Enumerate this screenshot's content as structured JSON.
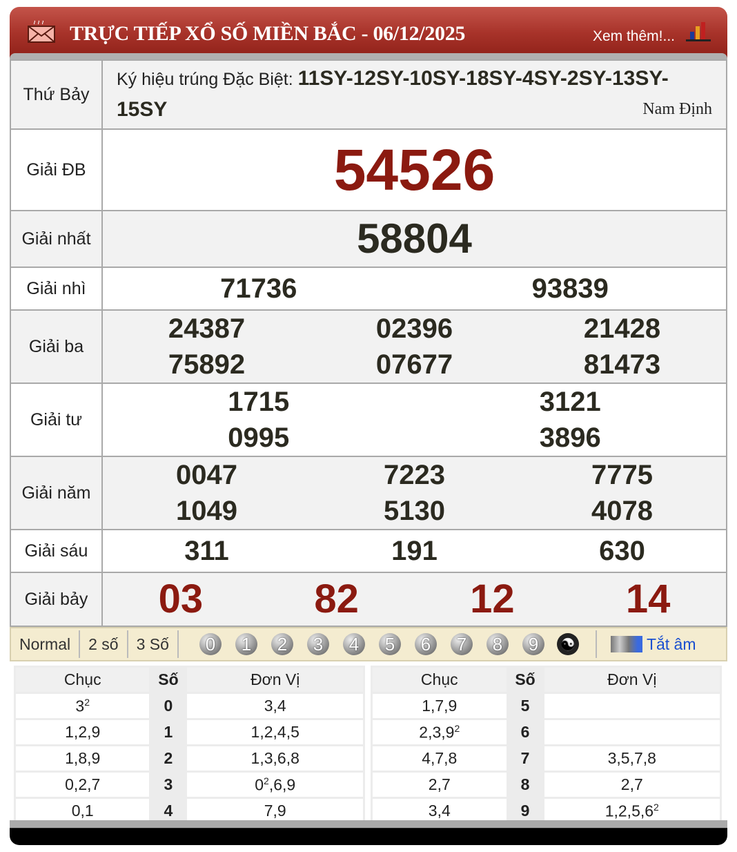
{
  "header": {
    "title": "TRỰC TIẾP XỔ SỐ MIỀN BẮC - 06/12/2025",
    "more_link": "Xem thêm!...",
    "colors": {
      "header": "#a8332a",
      "special": "#8b1a10"
    }
  },
  "info": {
    "day": "Thứ Bảy",
    "code_label": "Ký hiệu trúng Đặc Biệt: ",
    "codes": "11SY-12SY-10SY-18SY-4SY-2SY-13SY-15SY",
    "province": "Nam Định"
  },
  "prizes": [
    {
      "label": "Giải ĐB",
      "cols": 1,
      "numbers": [
        "54526"
      ]
    },
    {
      "label": "Giải nhất",
      "cols": 1,
      "numbers": [
        "58804"
      ]
    },
    {
      "label": "Giải nhì",
      "cols": 2,
      "numbers": [
        "71736",
        "93839"
      ]
    },
    {
      "label": "Giải ba",
      "cols": 3,
      "numbers": [
        "24387",
        "02396",
        "21428",
        "75892",
        "07677",
        "81473"
      ]
    },
    {
      "label": "Giải tư",
      "cols": 2,
      "numbers": [
        "1715",
        "3121",
        "0995",
        "3896"
      ]
    },
    {
      "label": "Giải năm",
      "cols": 3,
      "numbers": [
        "0047",
        "7223",
        "7775",
        "1049",
        "5130",
        "4078"
      ]
    },
    {
      "label": "Giải sáu",
      "cols": 3,
      "numbers": [
        "311",
        "191",
        "630"
      ]
    },
    {
      "label": "Giải bảy",
      "cols": 4,
      "numbers": [
        "03",
        "82",
        "12",
        "14"
      ]
    }
  ],
  "toolbar": {
    "modes": [
      "Normal",
      "2 số",
      "3 Số"
    ],
    "digits": [
      "0",
      "1",
      "2",
      "3",
      "4",
      "5",
      "6",
      "7",
      "8",
      "9"
    ],
    "mute": "Tắt âm"
  },
  "loto": {
    "headers": [
      "Chục",
      "Số",
      "Đơn Vị"
    ],
    "rows": [
      {
        "chuc": [
          [
            "3",
            "2"
          ]
        ],
        "so": "0",
        "dv": [
          [
            "3,4",
            ""
          ]
        ]
      },
      {
        "chuc": [
          [
            "1,2,9",
            ""
          ]
        ],
        "so": "1",
        "dv": [
          [
            "1,2,4,5",
            ""
          ]
        ]
      },
      {
        "chuc": [
          [
            "1,8,9",
            ""
          ]
        ],
        "so": "2",
        "dv": [
          [
            "1,3,6,8",
            ""
          ]
        ]
      },
      {
        "chuc": [
          [
            "0,2,7",
            ""
          ]
        ],
        "so": "3",
        "dv": [
          [
            "0",
            "2"
          ],
          [
            ",6,9",
            ""
          ]
        ]
      },
      {
        "chuc": [
          [
            "0,1",
            ""
          ]
        ],
        "so": "4",
        "dv": [
          [
            "7,9",
            ""
          ]
        ]
      },
      {
        "chuc": [
          [
            "1,7,9",
            ""
          ]
        ],
        "so": "5",
        "dv": []
      },
      {
        "chuc": [
          [
            "2,3,9",
            "2"
          ]
        ],
        "so": "6",
        "dv": []
      },
      {
        "chuc": [
          [
            "4,7,8",
            ""
          ]
        ],
        "so": "7",
        "dv": [
          [
            "3,5,7,8",
            ""
          ]
        ]
      },
      {
        "chuc": [
          [
            "2,7",
            ""
          ]
        ],
        "so": "8",
        "dv": [
          [
            "2,7",
            ""
          ]
        ]
      },
      {
        "chuc": [
          [
            "3,4",
            ""
          ]
        ],
        "so": "9",
        "dv": [
          [
            "1,2,5,6",
            "2"
          ]
        ]
      }
    ]
  }
}
